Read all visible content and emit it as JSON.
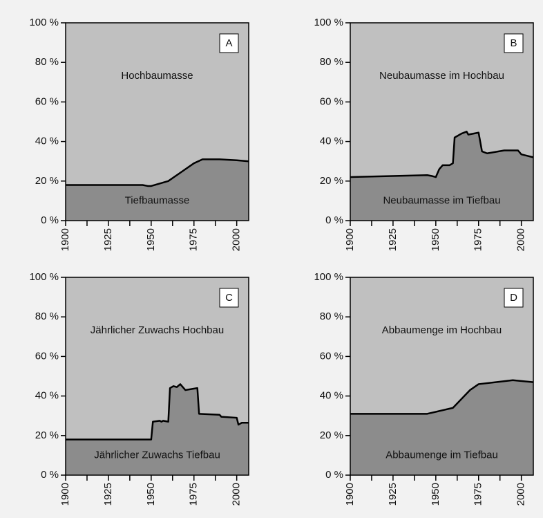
{
  "chart_data": [
    {
      "type": "area",
      "label": "A",
      "upper_label": "Hochbaumasse",
      "lower_label": "Tiefbaumasse",
      "upper_color": "#c0c0c0",
      "lower_color": "#8c8c8c",
      "x": [
        1900,
        1945,
        1948,
        1950,
        1960,
        1965,
        1970,
        1975,
        1980,
        1990,
        2000,
        2007
      ],
      "values": [
        18,
        18,
        17.5,
        17.5,
        20,
        23,
        26,
        29,
        31,
        31,
        30.5,
        30
      ],
      "xlim": [
        1900,
        2007
      ],
      "xticks": [
        1900,
        1925,
        1950,
        1975,
        2000
      ],
      "xminorticks": [
        1912.5,
        1937.5,
        1962.5,
        1987.5
      ],
      "ylim": [
        0,
        100
      ],
      "yticks": [
        {
          "value": 0,
          "label": "0 %"
        },
        {
          "value": 20,
          "label": "20 %"
        },
        {
          "value": 40,
          "label": "40 %"
        },
        {
          "value": 60,
          "label": "60 %"
        },
        {
          "value": 80,
          "label": "80 %"
        },
        {
          "value": 100,
          "label": "100 %"
        }
      ]
    },
    {
      "type": "area",
      "label": "B",
      "upper_label": "Neubaumasse im Hochbau",
      "lower_label": "Neubaumasse im Tiefbau",
      "upper_color": "#c0c0c0",
      "lower_color": "#8c8c8c",
      "x": [
        1900,
        1945,
        1948,
        1950,
        1952,
        1954,
        1958,
        1960,
        1961,
        1965,
        1968,
        1969,
        1975,
        1977,
        1980,
        1990,
        1998,
        2000,
        2007
      ],
      "values": [
        22,
        23,
        22.5,
        22,
        26,
        28,
        28,
        29,
        42,
        44,
        45,
        43.5,
        44.5,
        35,
        34,
        35.5,
        35.5,
        33.5,
        32
      ],
      "xlim": [
        1900,
        2007
      ],
      "xticks": [
        1900,
        1925,
        1950,
        1975,
        2000
      ],
      "xminorticks": [
        1912.5,
        1937.5,
        1962.5,
        1987.5
      ],
      "ylim": [
        0,
        100
      ],
      "yticks": [
        {
          "value": 0,
          "label": "0 %"
        },
        {
          "value": 20,
          "label": "20 %"
        },
        {
          "value": 40,
          "label": "40 %"
        },
        {
          "value": 60,
          "label": "60 %"
        },
        {
          "value": 80,
          "label": "80 %"
        },
        {
          "value": 100,
          "label": "100 %"
        }
      ]
    },
    {
      "type": "area",
      "label": "C",
      "upper_label": "Jährlicher Zuwachs Hochbau",
      "lower_label": "Jährlicher Zuwachs Tiefbau",
      "upper_color": "#c0c0c0",
      "lower_color": "#8c8c8c",
      "x": [
        1900,
        1950,
        1951,
        1955,
        1956,
        1957,
        1960,
        1961,
        1963,
        1965,
        1967,
        1970,
        1977,
        1978,
        1990,
        1991,
        2000,
        2001,
        2003,
        2007
      ],
      "values": [
        18,
        18,
        27,
        27.5,
        27,
        27.5,
        27,
        44,
        45,
        44.5,
        46,
        43,
        44,
        31,
        30.5,
        29.5,
        29,
        25.5,
        26.5,
        26.5
      ],
      "xlim": [
        1900,
        2007
      ],
      "xticks": [
        1900,
        1925,
        1950,
        1975,
        2000
      ],
      "xminorticks": [
        1912.5,
        1937.5,
        1962.5,
        1987.5
      ],
      "ylim": [
        0,
        100
      ],
      "yticks": [
        {
          "value": 0,
          "label": "0 %"
        },
        {
          "value": 20,
          "label": "20 %"
        },
        {
          "value": 40,
          "label": "40 %"
        },
        {
          "value": 60,
          "label": "60 %"
        },
        {
          "value": 80,
          "label": "80 %"
        },
        {
          "value": 100,
          "label": "100 %"
        }
      ]
    },
    {
      "type": "area",
      "label": "D",
      "upper_label": "Abbaumenge im Hochbau",
      "lower_label": "Abbaumenge im Tiefbau",
      "upper_color": "#c0c0c0",
      "lower_color": "#8c8c8c",
      "x": [
        1900,
        1945,
        1960,
        1965,
        1970,
        1975,
        1985,
        1995,
        2007
      ],
      "values": [
        31,
        31,
        34,
        38.5,
        43,
        46,
        47,
        48,
        47
      ],
      "xlim": [
        1900,
        2007
      ],
      "xticks": [
        1900,
        1925,
        1950,
        1975,
        2000
      ],
      "xminorticks": [
        1912.5,
        1937.5,
        1962.5,
        1987.5
      ],
      "ylim": [
        0,
        100
      ],
      "yticks": [
        {
          "value": 0,
          "label": "0 %"
        },
        {
          "value": 20,
          "label": "20 %"
        },
        {
          "value": 40,
          "label": "40 %"
        },
        {
          "value": 60,
          "label": "60 %"
        },
        {
          "value": 80,
          "label": "80 %"
        },
        {
          "value": 100,
          "label": "100 %"
        }
      ]
    }
  ]
}
